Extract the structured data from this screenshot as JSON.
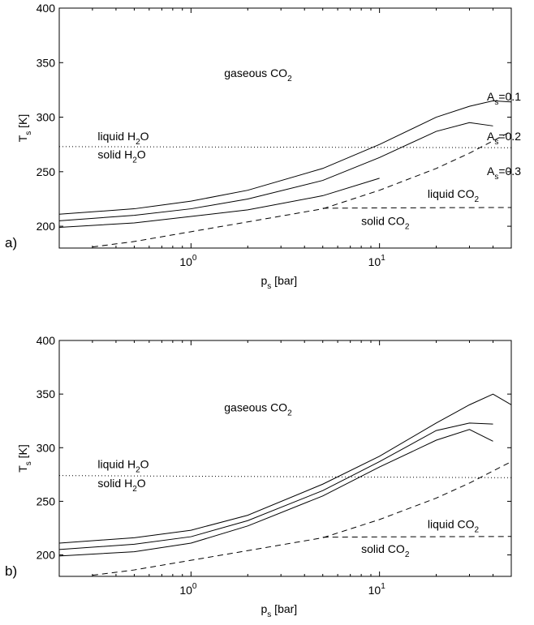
{
  "chart_data": [
    {
      "type": "line",
      "panel_label": "a)",
      "xscale": "log",
      "xlim": [
        0.2,
        50
      ],
      "ylim": [
        180,
        400
      ],
      "yticks": [
        200,
        250,
        300,
        350,
        400
      ],
      "xticks": [
        {
          "value": 1,
          "base": "10",
          "exp": "0"
        },
        {
          "value": 10,
          "base": "10",
          "exp": "1"
        }
      ],
      "xlabel": {
        "main": "p",
        "sub": "s",
        "rest": " [bar]"
      },
      "ylabel": {
        "main": "T",
        "sub": "s",
        "rest": " [K]"
      },
      "grid": false,
      "series": [
        {
          "name_main": "A",
          "name_sub": "s",
          "name_rest": "=0.1",
          "style": "solid",
          "x": [
            0.2,
            0.5,
            1,
            2,
            5,
            10,
            20,
            30,
            40,
            50
          ],
          "y": [
            211,
            216,
            223,
            233,
            253,
            275,
            300,
            310,
            315,
            314
          ]
        },
        {
          "name_main": "A",
          "name_sub": "s",
          "name_rest": "=0.2",
          "style": "solid",
          "x": [
            0.2,
            0.5,
            1,
            2,
            5,
            10,
            20,
            30,
            40
          ],
          "y": [
            205,
            210,
            216,
            225,
            242,
            263,
            287,
            295,
            292
          ]
        },
        {
          "name_main": "A",
          "name_sub": "s",
          "name_rest": "=0.3",
          "style": "solid",
          "x": [
            0.2,
            0.5,
            1,
            2,
            5,
            10
          ],
          "y": [
            199,
            203,
            209,
            215,
            228,
            244
          ]
        },
        {
          "style": "dashed",
          "x": [
            0.3,
            0.5,
            1,
            2,
            5,
            10,
            20,
            30,
            50
          ],
          "y": [
            181,
            186,
            195,
            204,
            216,
            233,
            253,
            267,
            287
          ]
        },
        {
          "style": "dashed",
          "x": [
            5,
            10,
            20,
            50
          ],
          "y": [
            216.5,
            216.8,
            217,
            217.2
          ]
        },
        {
          "style": "dotted",
          "x": [
            0.2,
            50
          ],
          "y": [
            273,
            272
          ]
        }
      ],
      "annotations": [
        {
          "main": "gaseous CO",
          "sub": "2",
          "x": 1.5,
          "y": 337
        },
        {
          "main": "liquid H",
          "sub": "2",
          "rest": "O",
          "x": 0.32,
          "y": 279
        },
        {
          "main": "solid H",
          "sub": "2",
          "rest": "O",
          "x": 0.32,
          "y": 262
        },
        {
          "main": "liquid CO",
          "sub": "2",
          "x": 18,
          "y": 226
        },
        {
          "main": "solid CO",
          "sub": "2",
          "x": 8,
          "y": 201
        }
      ]
    },
    {
      "type": "line",
      "panel_label": "b)",
      "xscale": "log",
      "xlim": [
        0.2,
        50
      ],
      "ylim": [
        180,
        400
      ],
      "yticks": [
        200,
        250,
        300,
        350,
        400
      ],
      "xticks": [
        {
          "value": 1,
          "base": "10",
          "exp": "0"
        },
        {
          "value": 10,
          "base": "10",
          "exp": "1"
        }
      ],
      "xlabel": {
        "main": "p",
        "sub": "s",
        "rest": " [bar]"
      },
      "ylabel": {
        "main": "T",
        "sub": "s",
        "rest": " [K]"
      },
      "grid": false,
      "series": [
        {
          "style": "solid",
          "x": [
            0.2,
            0.5,
            1,
            2,
            5,
            10,
            20,
            30,
            40,
            50
          ],
          "y": [
            211,
            216,
            223,
            237,
            266,
            292,
            323,
            340,
            350,
            340
          ]
        },
        {
          "style": "solid",
          "x": [
            0.2,
            0.5,
            1,
            2,
            5,
            10,
            20,
            30,
            40
          ],
          "y": [
            205,
            210,
            217,
            232,
            260,
            287,
            316,
            323,
            322
          ]
        },
        {
          "style": "solid",
          "x": [
            0.2,
            0.5,
            1,
            2,
            5,
            10,
            20,
            30,
            40
          ],
          "y": [
            199,
            203,
            211,
            227,
            255,
            282,
            307,
            317,
            306
          ]
        },
        {
          "style": "dashed",
          "x": [
            0.3,
            0.5,
            1,
            2,
            5,
            10,
            20,
            30,
            50
          ],
          "y": [
            181,
            186,
            195,
            204,
            216,
            233,
            253,
            267,
            287
          ]
        },
        {
          "style": "dashed",
          "x": [
            5,
            10,
            20,
            50
          ],
          "y": [
            216.5,
            216.8,
            217,
            217.2
          ]
        },
        {
          "style": "dotted",
          "x": [
            0.2,
            50
          ],
          "y": [
            274,
            272
          ]
        }
      ],
      "annotations": [
        {
          "main": "gaseous CO",
          "sub": "2",
          "x": 1.5,
          "y": 334
        },
        {
          "main": "liquid H",
          "sub": "2",
          "rest": "O",
          "x": 0.32,
          "y": 281
        },
        {
          "main": "solid H",
          "sub": "2",
          "rest": "O",
          "x": 0.32,
          "y": 263
        },
        {
          "main": "liquid CO",
          "sub": "2",
          "x": 18,
          "y": 225
        },
        {
          "main": "solid CO",
          "sub": "2",
          "x": 8,
          "y": 202
        }
      ]
    }
  ]
}
